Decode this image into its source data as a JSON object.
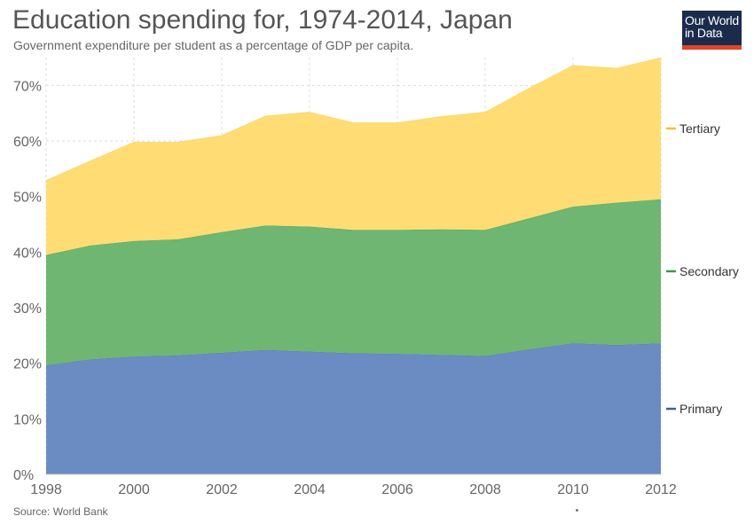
{
  "header": {
    "title": "Education spending for, 1974-2014, Japan",
    "subtitle": "Government expenditure per student as a percentage of GDP per capita."
  },
  "logo": {
    "line1": "Our World",
    "line2": "in Data",
    "background_color": "#1a2b4c",
    "accent_color": "#e0442c"
  },
  "footer": {
    "source": "Source: World Bank"
  },
  "chart_data": {
    "type": "area",
    "stacked": true,
    "title": "Education spending for, 1974-2014, Japan",
    "subtitle": "Government expenditure per student as a percentage of GDP per capita.",
    "xlabel": "",
    "ylabel": "",
    "x": [
      1998,
      1999,
      2000,
      2001,
      2002,
      2003,
      2004,
      2005,
      2006,
      2007,
      2008,
      2009,
      2010,
      2011,
      2012
    ],
    "xlim": [
      1998,
      2012
    ],
    "ylim": [
      0,
      75
    ],
    "x_ticks": [
      "1998",
      "2000",
      "2002",
      "2004",
      "2006",
      "2008",
      "2010",
      "2012"
    ],
    "y_ticks": [
      "0%",
      "10%",
      "20%",
      "30%",
      "40%",
      "50%",
      "60%",
      "70%"
    ],
    "grid": true,
    "legend_position": "right",
    "series": [
      {
        "name": "Primary",
        "color": "#6b8cc2",
        "legend_color": "#3c5ea8",
        "values": [
          19.6,
          20.7,
          21.2,
          21.4,
          21.9,
          22.4,
          22.1,
          21.8,
          21.7,
          21.5,
          21.3,
          22.5,
          23.6,
          23.3,
          23.6
        ]
      },
      {
        "name": "Secondary",
        "color": "#6eb672",
        "legend_color": "#3a9a48",
        "values": [
          19.9,
          20.5,
          20.8,
          20.9,
          21.7,
          22.4,
          22.5,
          22.2,
          22.3,
          22.6,
          22.7,
          23.6,
          24.6,
          25.6,
          25.9
        ]
      },
      {
        "name": "Tertiary",
        "color": "#ffdd74",
        "legend_color": "#f1c430",
        "values": [
          13.4,
          15.2,
          17.8,
          17.5,
          17.4,
          19.7,
          20.6,
          19.3,
          19.3,
          20.3,
          21.2,
          23.4,
          25.4,
          24.2,
          25.5
        ]
      }
    ]
  }
}
